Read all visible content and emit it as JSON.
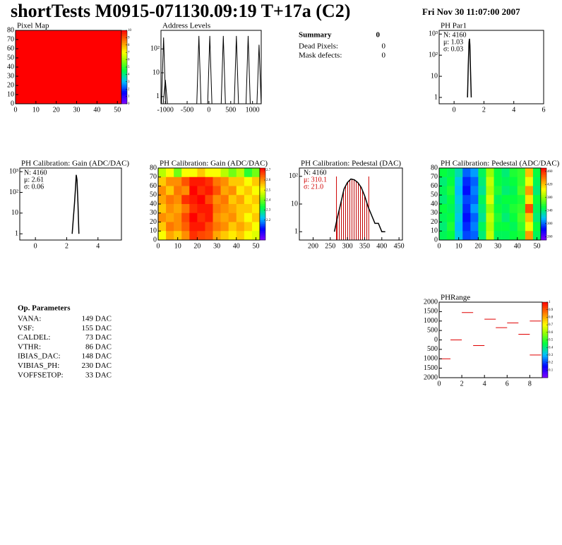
{
  "header": {
    "title": "shortTests M0915-071130.09:19 T+17a (C2)",
    "date": "Fri Nov 30 11:07:00 2007"
  },
  "summary": {
    "title": "Summary",
    "total": 0,
    "rows": [
      {
        "label": "Dead Pixels:",
        "value": 0
      },
      {
        "label": "Mask defects:",
        "value": 0
      }
    ]
  },
  "parameters": {
    "title": "Op. Parameters",
    "rows": [
      [
        "VANA:",
        "149 DAC"
      ],
      [
        "VSF:",
        "155 DAC"
      ],
      [
        "CALDEL:",
        "73 DAC"
      ],
      [
        "VTHR:",
        "86 DAC"
      ],
      [
        "IBIAS_DAC:",
        "148 DAC"
      ],
      [
        "VIBIAS_PH:",
        "230 DAC"
      ],
      [
        "VOFFSETOP:",
        "33 DAC"
      ]
    ]
  },
  "chart_data": [
    {
      "type": "heatmap",
      "title": "Pixel Map",
      "xlim": [
        0,
        52
      ],
      "xticks": [
        0,
        10,
        20,
        30,
        40,
        50
      ],
      "ylim": [
        0,
        80
      ],
      "yticks": [
        0,
        10,
        20,
        30,
        40,
        50,
        60,
        70,
        80
      ],
      "zlim": [
        0,
        10
      ],
      "zticks": [
        0,
        1,
        2,
        3,
        4,
        5,
        6,
        7,
        8,
        9,
        10
      ],
      "values": [
        [
          10
        ]
      ]
    },
    {
      "type": "spikes",
      "title": "Address Levels",
      "logy": true,
      "xlim": [
        -1100,
        1200
      ],
      "xticks": [
        -1000,
        -500,
        0,
        500,
        1000
      ],
      "ylim": [
        0.5,
        600
      ],
      "yticks": [
        1,
        10,
        {
          "value": 100,
          "label": "10²"
        }
      ],
      "x": [
        -1040,
        -1000,
        -230,
        20,
        330,
        630,
        900,
        1150
      ],
      "values": [
        300,
        5,
        350,
        350,
        350,
        350,
        350,
        150
      ]
    },
    {
      "type": "histogram",
      "title": "PH Par1",
      "logy": true,
      "xlim": [
        -1,
        6
      ],
      "xticks": [
        0,
        2,
        4,
        6
      ],
      "ylim": [
        0.5,
        1500
      ],
      "yticks": [
        1,
        10,
        {
          "value": 100,
          "label": "10²"
        },
        {
          "value": 1000,
          "label": "10³"
        }
      ],
      "stats": [
        "N: 4160",
        "μ: 1.03",
        "σ: 0.03"
      ],
      "stats_colors": [
        "#000",
        "#000",
        "#000"
      ],
      "x": [
        0.9,
        0.95,
        1.0,
        1.03,
        1.06,
        1.1,
        1.15
      ],
      "values": [
        1,
        30,
        400,
        600,
        300,
        20,
        1
      ]
    },
    {
      "type": "histogram",
      "title": "PH Calibration: Gain (ADC/DAC)",
      "logy": true,
      "xlim": [
        -1,
        5.5
      ],
      "xticks": [
        0,
        2,
        4
      ],
      "ylim": [
        0.5,
        1500
      ],
      "yticks": [
        1,
        10,
        {
          "value": 100,
          "label": "10²"
        },
        {
          "value": 1000,
          "label": "10³"
        }
      ],
      "stats": [
        "N: 4160",
        "μ: 2.61",
        "σ: 0.06"
      ],
      "stats_colors": [
        "#000",
        "#000",
        "#000"
      ],
      "x": [
        2.35,
        2.42,
        2.5,
        2.56,
        2.61,
        2.66,
        2.72,
        2.78
      ],
      "values": [
        1,
        5,
        30,
        150,
        700,
        400,
        30,
        1
      ]
    },
    {
      "type": "heatmap",
      "title": "PH Calibration: Gain (ADC/DAC)",
      "xlim": [
        0,
        52
      ],
      "xticks": [
        0,
        10,
        20,
        30,
        40,
        50
      ],
      "ylim": [
        0,
        80
      ],
      "yticks": [
        0,
        10,
        20,
        30,
        40,
        50,
        60,
        70,
        80
      ],
      "zlim": [
        2.0,
        2.72
      ],
      "zticks": [
        2.2,
        2.3,
        2.4,
        2.5,
        2.6,
        2.7
      ],
      "values": [
        [
          2.45,
          2.5,
          2.4,
          2.5,
          2.5,
          2.55,
          2.5,
          2.5,
          2.45,
          2.4,
          2.45,
          2.35,
          2.4
        ],
        [
          2.55,
          2.6,
          2.6,
          2.65,
          2.7,
          2.7,
          2.68,
          2.62,
          2.6,
          2.55,
          2.55,
          2.5,
          2.55
        ],
        [
          2.6,
          2.55,
          2.62,
          2.6,
          2.72,
          2.68,
          2.7,
          2.65,
          2.58,
          2.6,
          2.52,
          2.55,
          2.5
        ],
        [
          2.58,
          2.62,
          2.6,
          2.68,
          2.7,
          2.72,
          2.66,
          2.6,
          2.62,
          2.55,
          2.58,
          2.52,
          2.55
        ],
        [
          2.55,
          2.6,
          2.58,
          2.62,
          2.68,
          2.7,
          2.7,
          2.62,
          2.6,
          2.58,
          2.55,
          2.55,
          2.52
        ],
        [
          2.6,
          2.58,
          2.6,
          2.66,
          2.72,
          2.68,
          2.7,
          2.6,
          2.58,
          2.6,
          2.55,
          2.5,
          2.55
        ],
        [
          2.55,
          2.62,
          2.6,
          2.64,
          2.7,
          2.7,
          2.66,
          2.62,
          2.6,
          2.55,
          2.58,
          2.55,
          2.5
        ],
        [
          2.5,
          2.58,
          2.55,
          2.6,
          2.68,
          2.66,
          2.65,
          2.58,
          2.55,
          2.52,
          2.55,
          2.5,
          2.48
        ]
      ]
    },
    {
      "type": "histogram",
      "title": "PH Calibration: Pedestal (DAC)",
      "logy": true,
      "xlim": [
        160,
        460
      ],
      "xticks": [
        200,
        250,
        300,
        350,
        400,
        450
      ],
      "ylim": [
        0.5,
        200
      ],
      "yticks": [
        1,
        10,
        {
          "value": 100,
          "label": "10²"
        }
      ],
      "stats": [
        "N: 4160",
        "μ: 310.1",
        "σ: 21.0"
      ],
      "stats_colors": [
        "#000",
        "#d00000",
        "#d00000"
      ],
      "markers": [
        268,
        362
      ],
      "x": [
        262,
        270,
        280,
        290,
        300,
        310,
        320,
        330,
        340,
        350,
        360,
        370,
        380,
        390,
        400,
        410
      ],
      "values": [
        1,
        3,
        10,
        35,
        60,
        80,
        75,
        60,
        40,
        20,
        8,
        4,
        2,
        2,
        1,
        1
      ]
    },
    {
      "type": "heatmap",
      "title": "PH Calibration: Pedestal (ADC/DAC)",
      "xlim": [
        0,
        52
      ],
      "xticks": [
        0,
        10,
        20,
        30,
        40,
        50
      ],
      "ylim": [
        0,
        80
      ],
      "yticks": [
        0,
        10,
        20,
        30,
        40,
        50,
        60,
        70,
        80
      ],
      "zlim": [
        250,
        470
      ],
      "zticks": [
        260,
        300,
        340,
        380,
        420,
        460
      ],
      "values": [
        [
          350,
          345,
          330,
          300,
          310,
          345,
          380,
          350,
          340,
          355,
          360,
          420,
          350
        ],
        [
          340,
          350,
          320,
          290,
          300,
          340,
          390,
          350,
          345,
          350,
          360,
          400,
          345
        ],
        [
          345,
          355,
          315,
          285,
          305,
          335,
          385,
          355,
          340,
          345,
          365,
          430,
          340
        ],
        [
          340,
          350,
          320,
          295,
          300,
          345,
          395,
          345,
          350,
          350,
          355,
          410,
          350
        ],
        [
          350,
          345,
          325,
          290,
          310,
          340,
          380,
          350,
          345,
          355,
          360,
          450,
          345
        ],
        [
          345,
          350,
          320,
          285,
          300,
          335,
          390,
          355,
          340,
          350,
          365,
          420,
          340
        ],
        [
          340,
          355,
          315,
          290,
          305,
          345,
          385,
          350,
          350,
          345,
          360,
          400,
          350
        ],
        [
          345,
          350,
          320,
          295,
          300,
          340,
          390,
          345,
          345,
          350,
          355,
          430,
          345
        ]
      ]
    },
    {
      "type": "segments",
      "title": "PHRange",
      "xlim": [
        0,
        9.1
      ],
      "xticks": [
        0,
        2,
        4,
        6,
        8
      ],
      "ylim": [
        -2000,
        2000
      ],
      "yticks": [
        {
          "value": -2000,
          "label": "2000"
        },
        {
          "value": -1500,
          "label": "1500"
        },
        {
          "value": -1000,
          "label": "1000"
        },
        {
          "value": -500,
          "label": "500"
        },
        0,
        500,
        1000,
        1500,
        2000
      ],
      "zlim": [
        0,
        1
      ],
      "zticks": [
        0.1,
        0.2,
        0.3,
        0.4,
        0.5,
        0.6,
        0.7,
        0.8,
        0.9,
        1
      ],
      "color": "#e00000",
      "x": [
        0.5,
        1.5,
        2.5,
        3.5,
        4.5,
        5.5,
        6.5,
        7.5,
        8.5,
        8.5
      ],
      "values": [
        -1000,
        0,
        1450,
        -300,
        1100,
        650,
        900,
        300,
        1000,
        -800
      ]
    }
  ]
}
